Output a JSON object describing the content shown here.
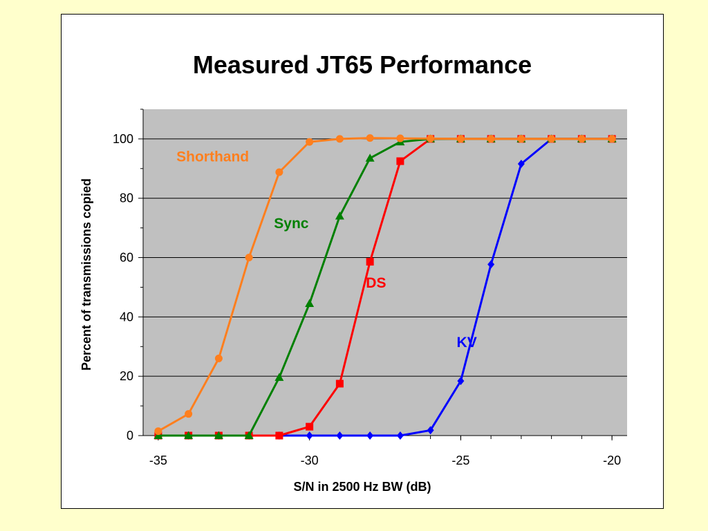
{
  "chart_data": {
    "type": "line",
    "title": "Measured JT65 Performance",
    "xlabel": "S/N in 2500 Hz BW (dB)",
    "ylabel": "Percent of transmissions copied",
    "xlim": [
      -35.5,
      -19.5
    ],
    "ylim": [
      0,
      110
    ],
    "x_ticks": [
      -35,
      -30,
      -25,
      -20
    ],
    "x_tick_labels": [
      "-35",
      "-30",
      "-25",
      "-20"
    ],
    "y_ticks": [
      0,
      20,
      40,
      60,
      80,
      100
    ],
    "y_tick_labels": [
      "0",
      "20",
      "40",
      "60",
      "80",
      "100"
    ],
    "plot_background": "#C0C0C0",
    "gridlines": "horizontal",
    "legend": "inline labels",
    "x": [
      -35,
      -34,
      -33,
      -32,
      -31,
      -30,
      -29,
      -28,
      -27,
      -26,
      -25,
      -24,
      -23,
      -22,
      -21,
      -20
    ],
    "series": [
      {
        "name": "Shorthand",
        "color": "#FF7F1E",
        "marker": "circle",
        "values": [
          1.5,
          7.3,
          26,
          60,
          88.8,
          99,
          100,
          100.3,
          100.2,
          100.1,
          100,
          100,
          100,
          100,
          100,
          100
        ]
      },
      {
        "name": "Sync",
        "color": "#008000",
        "marker": "triangle",
        "values": [
          0,
          0,
          0,
          0,
          19.6,
          44.5,
          74,
          93.5,
          99,
          100,
          100,
          100,
          100,
          100,
          100,
          100
        ]
      },
      {
        "name": "DS",
        "color": "#FF0000",
        "marker": "square",
        "values": [
          0,
          0,
          0,
          0,
          0,
          3,
          17.5,
          58.6,
          92.5,
          100,
          100,
          100,
          100,
          100,
          100,
          100
        ]
      },
      {
        "name": "KV",
        "color": "#0000FF",
        "marker": "diamond",
        "values": [
          0,
          0,
          0,
          0,
          0,
          0,
          0,
          0,
          0,
          1.8,
          18.4,
          57.7,
          91.6,
          100,
          100,
          100
        ]
      }
    ],
    "label_anchors": [
      {
        "series": "Shorthand",
        "x": -33.2,
        "y": 94
      },
      {
        "series": "Sync",
        "x": -30.6,
        "y": 71.5
      },
      {
        "series": "DS",
        "x": -27.8,
        "y": 51.5
      },
      {
        "series": "KV",
        "x": -24.8,
        "y": 31.5
      }
    ]
  }
}
